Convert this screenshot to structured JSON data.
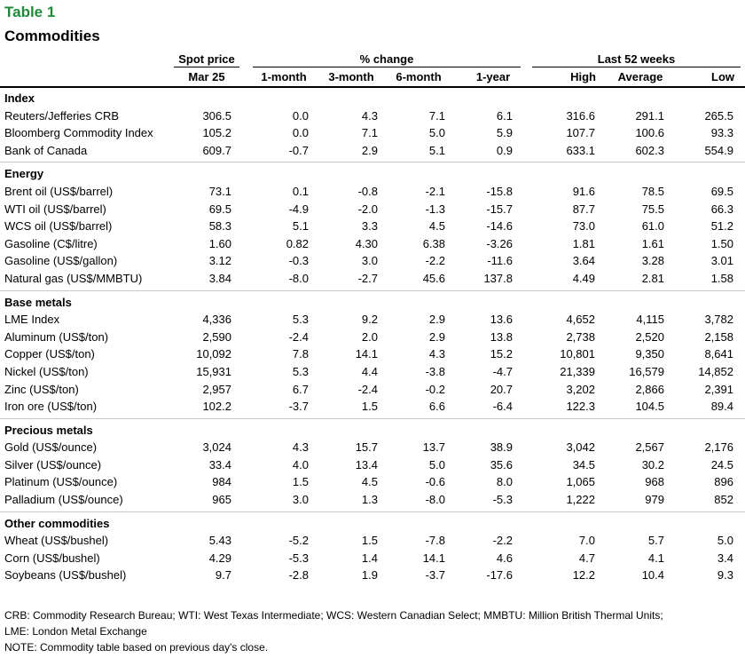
{
  "title": "Table 1",
  "subtitle": "Commodities",
  "headers": {
    "spot_group": "Spot price",
    "spot_date": "Mar 25",
    "pct_group": "% change",
    "pct_cols": [
      "1-month",
      "3-month",
      "6-month",
      "1-year"
    ],
    "wk52_group": "Last 52 weeks",
    "wk52_cols": [
      "High",
      "Average",
      "Low"
    ]
  },
  "sections": [
    {
      "name": "Index",
      "rows": [
        {
          "label": "Reuters/Jefferies CRB",
          "values": [
            "306.5",
            "0.0",
            "4.3",
            "7.1",
            "6.1",
            "316.6",
            "291.1",
            "265.5"
          ]
        },
        {
          "label": "Bloomberg Commodity Index",
          "values": [
            "105.2",
            "0.0",
            "7.1",
            "5.0",
            "5.9",
            "107.7",
            "100.6",
            "93.3"
          ]
        },
        {
          "label": "Bank of Canada",
          "values": [
            "609.7",
            "-0.7",
            "2.9",
            "5.1",
            "0.9",
            "633.1",
            "602.3",
            "554.9"
          ]
        }
      ]
    },
    {
      "name": "Energy",
      "rows": [
        {
          "label": "Brent oil (US$/barrel)",
          "values": [
            "73.1",
            "0.1",
            "-0.8",
            "-2.1",
            "-15.8",
            "91.6",
            "78.5",
            "69.5"
          ]
        },
        {
          "label": "WTI oil (US$/barrel)",
          "values": [
            "69.5",
            "-4.9",
            "-2.0",
            "-1.3",
            "-15.7",
            "87.7",
            "75.5",
            "66.3"
          ]
        },
        {
          "label": "WCS oil (US$/barrel)",
          "values": [
            "58.3",
            "5.1",
            "3.3",
            "4.5",
            "-14.6",
            "73.0",
            "61.0",
            "51.2"
          ]
        },
        {
          "label": "Gasoline (C$/litre)",
          "values": [
            "1.60",
            "0.82",
            "4.30",
            "6.38",
            "-3.26",
            "1.81",
            "1.61",
            "1.50"
          ]
        },
        {
          "label": "Gasoline (US$/gallon)",
          "values": [
            "3.12",
            "-0.3",
            "3.0",
            "-2.2",
            "-11.6",
            "3.64",
            "3.28",
            "3.01"
          ]
        },
        {
          "label": "Natural gas (US$/MMBTU)",
          "values": [
            "3.84",
            "-8.0",
            "-2.7",
            "45.6",
            "137.8",
            "4.49",
            "2.81",
            "1.58"
          ]
        }
      ]
    },
    {
      "name": "Base metals",
      "rows": [
        {
          "label": "LME Index",
          "values": [
            "4,336",
            "5.3",
            "9.2",
            "2.9",
            "13.6",
            "4,652",
            "4,115",
            "3,782"
          ]
        },
        {
          "label": "Aluminum (US$/ton)",
          "values": [
            "2,590",
            "-2.4",
            "2.0",
            "2.9",
            "13.8",
            "2,738",
            "2,520",
            "2,158"
          ]
        },
        {
          "label": "Copper (US$/ton)",
          "values": [
            "10,092",
            "7.8",
            "14.1",
            "4.3",
            "15.2",
            "10,801",
            "9,350",
            "8,641"
          ]
        },
        {
          "label": "Nickel (US$/ton)",
          "values": [
            "15,931",
            "5.3",
            "4.4",
            "-3.8",
            "-4.7",
            "21,339",
            "16,579",
            "14,852"
          ]
        },
        {
          "label": "Zinc (US$/ton)",
          "values": [
            "2,957",
            "6.7",
            "-2.4",
            "-0.2",
            "20.7",
            "3,202",
            "2,866",
            "2,391"
          ]
        },
        {
          "label": "Iron ore (US$/ton)",
          "values": [
            "102.2",
            "-3.7",
            "1.5",
            "6.6",
            "-6.4",
            "122.3",
            "104.5",
            "89.4"
          ]
        }
      ]
    },
    {
      "name": "Precious metals",
      "rows": [
        {
          "label": "Gold (US$/ounce)",
          "values": [
            "3,024",
            "4.3",
            "15.7",
            "13.7",
            "38.9",
            "3,042",
            "2,567",
            "2,176"
          ]
        },
        {
          "label": "Silver (US$/ounce)",
          "values": [
            "33.4",
            "4.0",
            "13.4",
            "5.0",
            "35.6",
            "34.5",
            "30.2",
            "24.5"
          ]
        },
        {
          "label": "Platinum (US$/ounce)",
          "values": [
            "984",
            "1.5",
            "4.5",
            "-0.6",
            "8.0",
            "1,065",
            "968",
            "896"
          ]
        },
        {
          "label": "Palladium (US$/ounce)",
          "values": [
            "965",
            "3.0",
            "1.3",
            "-8.0",
            "-5.3",
            "1,222",
            "979",
            "852"
          ]
        }
      ]
    },
    {
      "name": "Other commodities",
      "rows": [
        {
          "label": "Wheat (US$/bushel)",
          "values": [
            "5.43",
            "-5.2",
            "1.5",
            "-7.8",
            "-2.2",
            "7.0",
            "5.7",
            "5.0"
          ]
        },
        {
          "label": "Corn (US$/bushel)",
          "values": [
            "4.29",
            "-5.3",
            "1.4",
            "14.1",
            "4.6",
            "4.7",
            "4.1",
            "3.4"
          ]
        },
        {
          "label": "Soybeans (US$/bushel)",
          "values": [
            "9.7",
            "-2.8",
            "1.9",
            "-3.7",
            "-17.6",
            "12.2",
            "10.4",
            "9.3"
          ]
        }
      ]
    }
  ],
  "notes": [
    "CRB: Commodity Research Bureau; WTI: West Texas Intermediate; WCS: Western Canadian Select; MMBTU: Million British Thermal Units;",
    "LME: London Metal Exchange",
    "NOTE: Commodity table based on previous day's close."
  ],
  "colors": {
    "title": "#1f8a3a",
    "separator": "#c8c8c8"
  }
}
